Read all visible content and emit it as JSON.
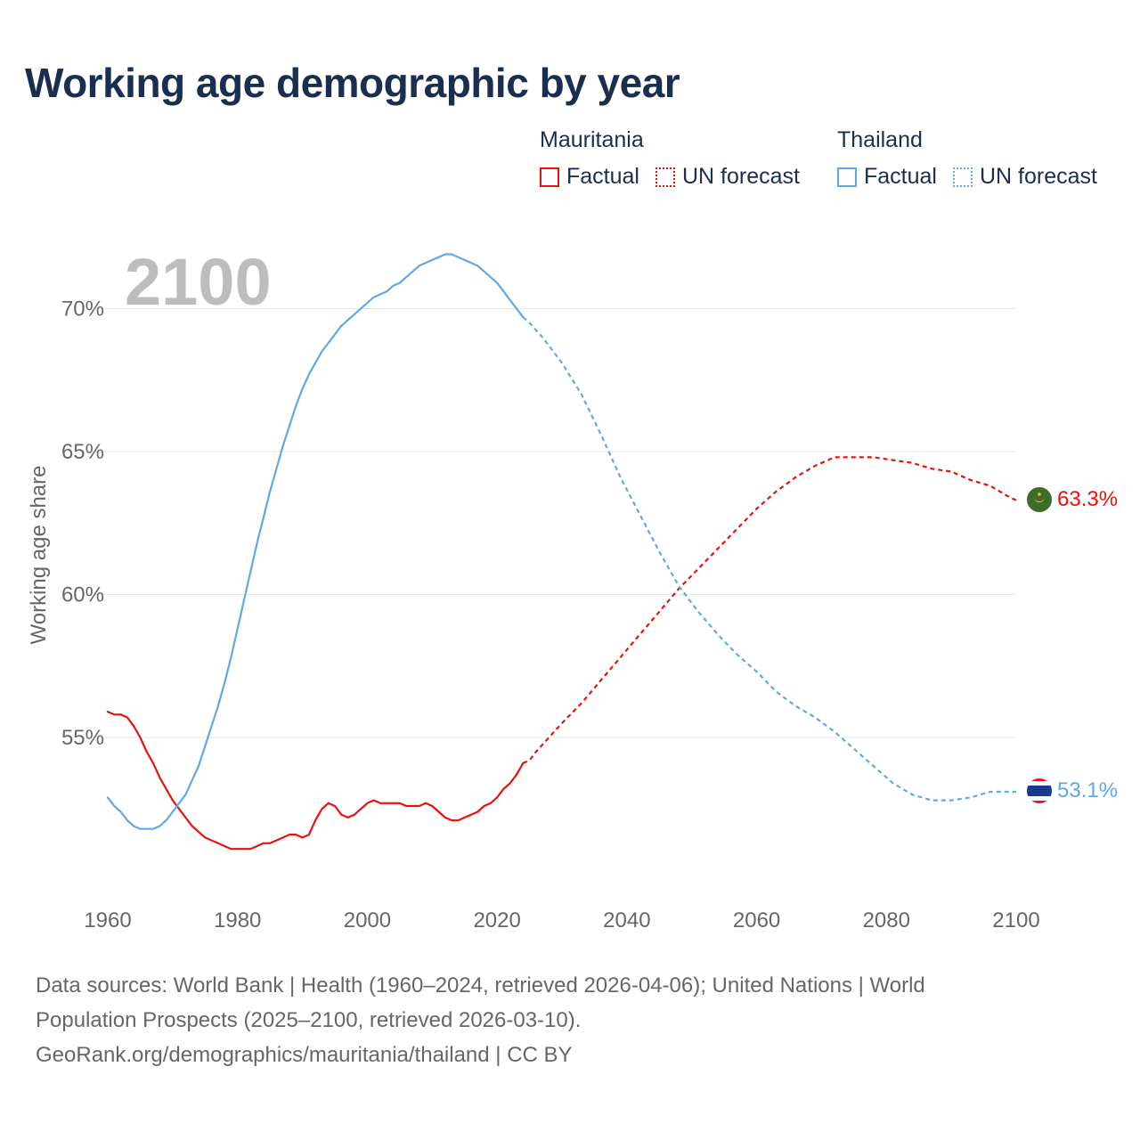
{
  "title": "Working age demographic by year",
  "legend": {
    "groups": [
      {
        "country": "Mauritania",
        "color": "#e8120c",
        "factual_label": "Factual",
        "forecast_label": "UN forecast"
      },
      {
        "country": "Thailand",
        "color": "#5ea9e6",
        "factual_label": "Factual",
        "forecast_label": "UN forecast"
      }
    ]
  },
  "year_label": "2100",
  "end_labels": {
    "mauritania": "63.3%",
    "thailand": "53.1%"
  },
  "flags": {
    "mauritania": "mauritania-flag",
    "thailand": "thailand-flag"
  },
  "footer": {
    "line1": "Data sources: World Bank | Health (1960–2024, retrieved 2026-04-06); United Nations | World",
    "line2": "Population Prospects (2025–2100, retrieved 2026-03-10).",
    "line3": "GeoRank.org/demographics/mauritania/thailand | CC BY"
  },
  "chart_data": {
    "type": "line",
    "title": "Working age demographic by year",
    "xlabel": "",
    "ylabel": "Working age share",
    "xlim": [
      1960,
      2100
    ],
    "ylim": [
      50,
      72
    ],
    "x_ticks": [
      1960,
      1980,
      2000,
      2020,
      2040,
      2060,
      2080,
      2100
    ],
    "y_ticks": [
      55,
      60,
      65,
      70
    ],
    "y_tick_labels": [
      "55%",
      "60%",
      "65%",
      "70%"
    ],
    "grid": true,
    "factual_range": [
      1960,
      2024
    ],
    "forecast_range": [
      2024,
      2100
    ],
    "series": [
      {
        "name": "Mauritania",
        "color": "#e8120c",
        "points": [
          [
            1960,
            55.9
          ],
          [
            1961,
            55.8
          ],
          [
            1962,
            55.8
          ],
          [
            1963,
            55.7
          ],
          [
            1964,
            55.4
          ],
          [
            1965,
            55.0
          ],
          [
            1966,
            54.5
          ],
          [
            1967,
            54.1
          ],
          [
            1968,
            53.6
          ],
          [
            1969,
            53.2
          ],
          [
            1970,
            52.8
          ],
          [
            1971,
            52.5
          ],
          [
            1972,
            52.2
          ],
          [
            1973,
            51.9
          ],
          [
            1974,
            51.7
          ],
          [
            1975,
            51.5
          ],
          [
            1976,
            51.4
          ],
          [
            1977,
            51.3
          ],
          [
            1978,
            51.2
          ],
          [
            1979,
            51.1
          ],
          [
            1980,
            51.1
          ],
          [
            1981,
            51.1
          ],
          [
            1982,
            51.1
          ],
          [
            1983,
            51.2
          ],
          [
            1984,
            51.3
          ],
          [
            1985,
            51.3
          ],
          [
            1986,
            51.4
          ],
          [
            1987,
            51.5
          ],
          [
            1988,
            51.6
          ],
          [
            1989,
            51.6
          ],
          [
            1990,
            51.5
          ],
          [
            1991,
            51.6
          ],
          [
            1992,
            52.1
          ],
          [
            1993,
            52.5
          ],
          [
            1994,
            52.7
          ],
          [
            1995,
            52.6
          ],
          [
            1996,
            52.3
          ],
          [
            1997,
            52.2
          ],
          [
            1998,
            52.3
          ],
          [
            1999,
            52.5
          ],
          [
            2000,
            52.7
          ],
          [
            2001,
            52.8
          ],
          [
            2002,
            52.7
          ],
          [
            2003,
            52.7
          ],
          [
            2004,
            52.7
          ],
          [
            2005,
            52.7
          ],
          [
            2006,
            52.6
          ],
          [
            2007,
            52.6
          ],
          [
            2008,
            52.6
          ],
          [
            2009,
            52.7
          ],
          [
            2010,
            52.6
          ],
          [
            2011,
            52.4
          ],
          [
            2012,
            52.2
          ],
          [
            2013,
            52.1
          ],
          [
            2014,
            52.1
          ],
          [
            2015,
            52.2
          ],
          [
            2016,
            52.3
          ],
          [
            2017,
            52.4
          ],
          [
            2018,
            52.6
          ],
          [
            2019,
            52.7
          ],
          [
            2020,
            52.9
          ],
          [
            2021,
            53.2
          ],
          [
            2022,
            53.4
          ],
          [
            2023,
            53.7
          ],
          [
            2024,
            54.1
          ],
          [
            2025,
            54.2
          ],
          [
            2026,
            54.5
          ],
          [
            2028,
            55.0
          ],
          [
            2030,
            55.5
          ],
          [
            2033,
            56.2
          ],
          [
            2036,
            57.0
          ],
          [
            2039,
            57.8
          ],
          [
            2042,
            58.6
          ],
          [
            2045,
            59.4
          ],
          [
            2048,
            60.2
          ],
          [
            2051,
            60.9
          ],
          [
            2054,
            61.6
          ],
          [
            2057,
            62.3
          ],
          [
            2060,
            63.0
          ],
          [
            2063,
            63.6
          ],
          [
            2066,
            64.1
          ],
          [
            2069,
            64.5
          ],
          [
            2072,
            64.8
          ],
          [
            2075,
            64.8
          ],
          [
            2078,
            64.8
          ],
          [
            2081,
            64.7
          ],
          [
            2084,
            64.6
          ],
          [
            2087,
            64.4
          ],
          [
            2090,
            64.3
          ],
          [
            2093,
            64.0
          ],
          [
            2096,
            63.8
          ],
          [
            2099,
            63.4
          ],
          [
            2100,
            63.3
          ]
        ]
      },
      {
        "name": "Thailand",
        "color": "#5ea9e6",
        "points": [
          [
            1960,
            52.9
          ],
          [
            1961,
            52.6
          ],
          [
            1962,
            52.4
          ],
          [
            1963,
            52.1
          ],
          [
            1964,
            51.9
          ],
          [
            1965,
            51.8
          ],
          [
            1966,
            51.8
          ],
          [
            1967,
            51.8
          ],
          [
            1968,
            51.9
          ],
          [
            1969,
            52.1
          ],
          [
            1970,
            52.4
          ],
          [
            1971,
            52.7
          ],
          [
            1972,
            53.0
          ],
          [
            1973,
            53.5
          ],
          [
            1974,
            54.0
          ],
          [
            1975,
            54.7
          ],
          [
            1976,
            55.4
          ],
          [
            1977,
            56.1
          ],
          [
            1978,
            56.9
          ],
          [
            1979,
            57.8
          ],
          [
            1980,
            58.8
          ],
          [
            1981,
            59.8
          ],
          [
            1982,
            60.8
          ],
          [
            1983,
            61.8
          ],
          [
            1984,
            62.7
          ],
          [
            1985,
            63.6
          ],
          [
            1986,
            64.4
          ],
          [
            1987,
            65.2
          ],
          [
            1988,
            65.9
          ],
          [
            1989,
            66.6
          ],
          [
            1990,
            67.2
          ],
          [
            1991,
            67.7
          ],
          [
            1992,
            68.1
          ],
          [
            1993,
            68.5
          ],
          [
            1994,
            68.8
          ],
          [
            1995,
            69.1
          ],
          [
            1996,
            69.4
          ],
          [
            1997,
            69.6
          ],
          [
            1998,
            69.8
          ],
          [
            1999,
            70.0
          ],
          [
            2000,
            70.2
          ],
          [
            2001,
            70.4
          ],
          [
            2002,
            70.5
          ],
          [
            2003,
            70.6
          ],
          [
            2004,
            70.8
          ],
          [
            2005,
            70.9
          ],
          [
            2006,
            71.1
          ],
          [
            2007,
            71.3
          ],
          [
            2008,
            71.5
          ],
          [
            2009,
            71.6
          ],
          [
            2010,
            71.7
          ],
          [
            2011,
            71.8
          ],
          [
            2012,
            71.9
          ],
          [
            2013,
            71.9
          ],
          [
            2014,
            71.8
          ],
          [
            2015,
            71.7
          ],
          [
            2016,
            71.6
          ],
          [
            2017,
            71.5
          ],
          [
            2018,
            71.3
          ],
          [
            2019,
            71.1
          ],
          [
            2020,
            70.9
          ],
          [
            2021,
            70.6
          ],
          [
            2022,
            70.3
          ],
          [
            2023,
            70.0
          ],
          [
            2024,
            69.7
          ],
          [
            2025,
            69.5
          ],
          [
            2027,
            69.0
          ],
          [
            2030,
            68.1
          ],
          [
            2033,
            67.0
          ],
          [
            2036,
            65.6
          ],
          [
            2039,
            64.1
          ],
          [
            2042,
            62.8
          ],
          [
            2045,
            61.5
          ],
          [
            2048,
            60.3
          ],
          [
            2051,
            59.4
          ],
          [
            2054,
            58.6
          ],
          [
            2057,
            57.9
          ],
          [
            2060,
            57.3
          ],
          [
            2063,
            56.6
          ],
          [
            2066,
            56.1
          ],
          [
            2069,
            55.7
          ],
          [
            2072,
            55.2
          ],
          [
            2075,
            54.6
          ],
          [
            2078,
            54.0
          ],
          [
            2081,
            53.4
          ],
          [
            2084,
            53.0
          ],
          [
            2087,
            52.8
          ],
          [
            2090,
            52.8
          ],
          [
            2093,
            52.9
          ],
          [
            2096,
            53.1
          ],
          [
            2099,
            53.1
          ],
          [
            2100,
            53.1
          ]
        ]
      }
    ]
  }
}
